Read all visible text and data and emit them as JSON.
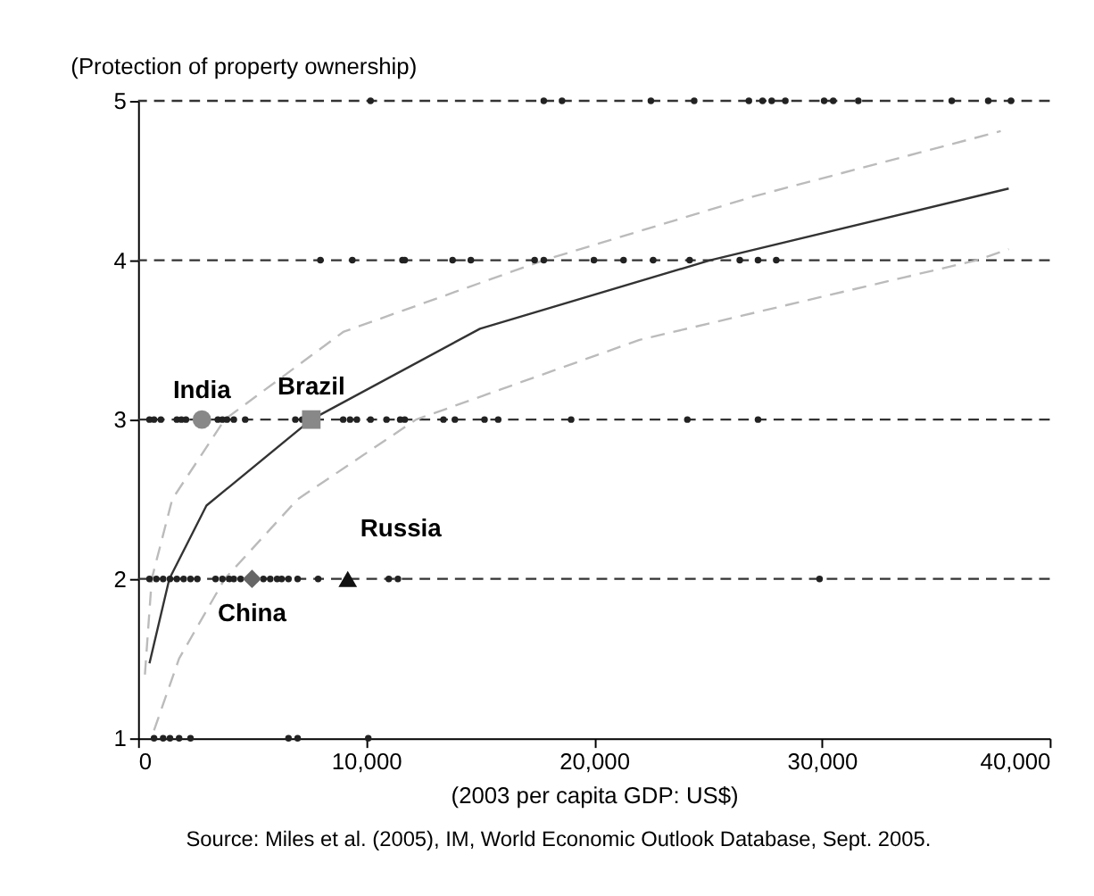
{
  "chart_data": {
    "type": "scatter",
    "xlabel": "(2003 per capita GDP: US$)",
    "ylabel": "(Protection of property ownership)",
    "xlim": [
      0,
      40000
    ],
    "ylim": [
      1,
      5
    ],
    "xticks": [
      0,
      {
        "value": 10000,
        "label": "10,000"
      },
      {
        "value": 20000,
        "label": "20,000"
      },
      {
        "value": 30000,
        "label": "30,000"
      },
      {
        "value": 40000,
        "label": "40,000"
      }
    ],
    "yticks": [
      1,
      2,
      3,
      4,
      5
    ],
    "grid": "y",
    "annotations": [
      "Source: Miles et al. (2005), IM, World Economic Outlook Database, Sept. 2005."
    ],
    "series": [
      {
        "marker": "circle",
        "color": "#222222",
        "x": [
          10200,
          17800,
          18600,
          22500,
          24400,
          26800,
          27400,
          27800,
          28400,
          30100,
          30500,
          31600,
          35700,
          37300,
          38300,
          8000,
          9400,
          11600,
          11700,
          13800,
          14600,
          17400,
          17800,
          20000,
          21300,
          22600,
          24200,
          26400,
          27200,
          28000,
          500,
          700,
          1000,
          1700,
          1900,
          2100,
          3500,
          3700,
          3900,
          4200,
          4700,
          6900,
          7200,
          9000,
          9300,
          9600,
          10200,
          10900,
          11500,
          11700,
          13400,
          13900,
          15200,
          15800,
          19000,
          24100,
          27200,
          500,
          800,
          1100,
          1400,
          1700,
          2000,
          2300,
          2600,
          3400,
          3700,
          4000,
          4200,
          4500,
          5500,
          5800,
          6100,
          6300,
          6600,
          7000,
          7900,
          11000,
          11400,
          29900,
          700,
          1100,
          1400,
          1800,
          2300,
          6600,
          7000,
          10100
        ],
        "values": [
          5,
          5,
          5,
          5,
          5,
          5,
          5,
          5,
          5,
          5,
          5,
          5,
          5,
          5,
          5,
          4,
          4,
          4,
          4,
          4,
          4,
          4,
          4,
          4,
          4,
          4,
          4,
          4,
          4,
          4,
          3,
          3,
          3,
          3,
          3,
          3,
          3,
          3,
          3,
          3,
          3,
          3,
          3,
          3,
          3,
          3,
          3,
          3,
          3,
          3,
          3,
          3,
          3,
          3,
          3,
          3,
          3,
          2,
          2,
          2,
          2,
          2,
          2,
          2,
          2,
          2,
          2,
          2,
          2,
          2,
          2,
          2,
          2,
          2,
          2,
          2,
          2,
          2,
          2,
          2,
          1,
          1,
          1,
          1,
          1,
          1,
          1,
          1
        ]
      },
      {
        "type": "line",
        "line_style": "solid",
        "color": "#333333",
        "x": [
          500,
          1370,
          3000,
          7600,
          15000,
          25100,
          38200
        ],
        "values": [
          1.47,
          2,
          2.46,
          3,
          3.57,
          4,
          4.45
        ]
      },
      {
        "type": "line",
        "line_style": "dashed",
        "color": "#bbbbbb",
        "x": [
          300,
          600,
          1500,
          3800,
          9000,
          17800,
          27000,
          37850
        ],
        "values": [
          1.4,
          2,
          2.5,
          3,
          3.55,
          4,
          4.4,
          4.81
        ]
      },
      {
        "type": "line",
        "line_style": "dashed",
        "color": "#bbbbbb",
        "x": [
          700,
          1800,
          3800,
          7000,
          12200,
          22000,
          36800,
          38200
        ],
        "values": [
          1.05,
          1.5,
          2,
          2.5,
          3,
          3.5,
          4,
          4.07
        ]
      },
      {
        "marker": "circle",
        "name": "India",
        "color": "#888888",
        "x": [
          2800
        ],
        "values": [
          3
        ]
      },
      {
        "marker": "square",
        "name": "Brazil",
        "color": "#888888",
        "x": [
          7600
        ],
        "values": [
          3
        ]
      },
      {
        "marker": "diamond",
        "name": "China",
        "color": "#666666",
        "x": [
          5000
        ],
        "values": [
          2
        ]
      },
      {
        "marker": "triangle",
        "name": "Russia",
        "color": "#111111",
        "x": [
          9200
        ],
        "values": [
          2
        ]
      }
    ]
  }
}
